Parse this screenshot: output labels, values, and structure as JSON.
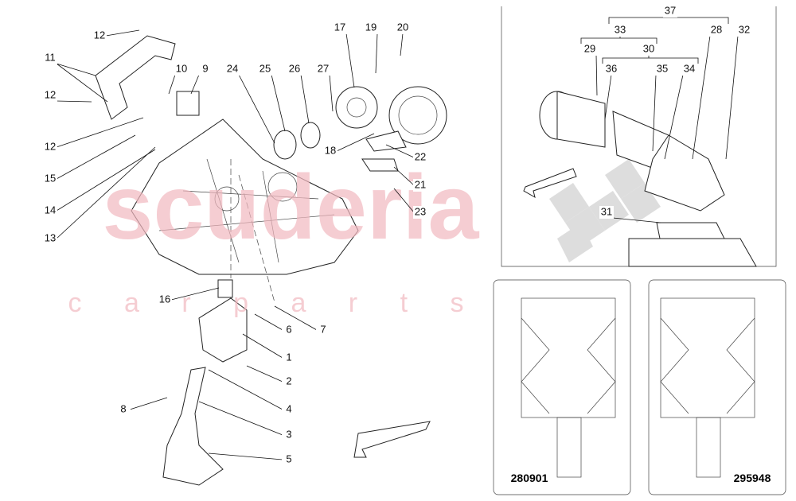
{
  "watermark": {
    "brand": "scuderia",
    "tagline": "c a r p a r t s"
  },
  "callouts": [
    "12",
    "11",
    "12",
    "10",
    "9",
    "24",
    "25",
    "26",
    "27",
    "17",
    "19",
    "20",
    "12",
    "15",
    "14",
    "13",
    "18",
    "22",
    "21",
    "23",
    "16",
    "6",
    "7",
    "1",
    "2",
    "4",
    "3",
    "8",
    "5",
    "37",
    "33",
    "30",
    "28",
    "32",
    "29",
    "36",
    "35",
    "34",
    "31"
  ],
  "insets": [
    {
      "code": "280901"
    },
    {
      "code": "295948"
    }
  ]
}
